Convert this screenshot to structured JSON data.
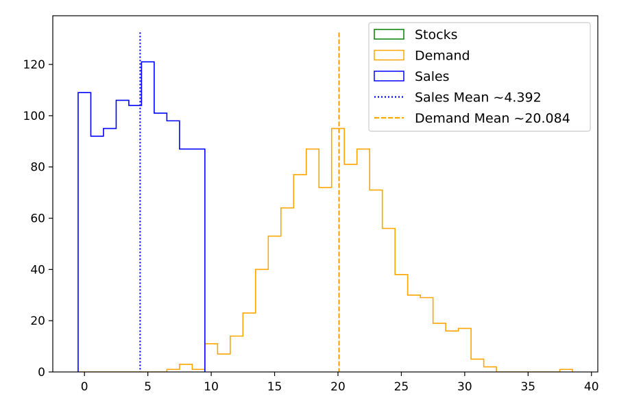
{
  "chart_data": {
    "type": "histogram",
    "title": "",
    "xlabel": "",
    "ylabel": "",
    "xlim": [
      -2.5,
      40.5
    ],
    "ylim": [
      0,
      139
    ],
    "xticks": [
      0,
      5,
      10,
      15,
      20,
      25,
      30,
      35,
      40
    ],
    "yticks": [
      0,
      20,
      40,
      60,
      80,
      100,
      120
    ],
    "grid": false,
    "legend_position": "top-right",
    "series": [
      {
        "name": "Stocks",
        "color": "#008000",
        "style": "step",
        "bin_edges": [],
        "counts": []
      },
      {
        "name": "Demand",
        "color": "#ffa500",
        "style": "step",
        "bin_edges": [
          -0.5,
          0.5,
          1.5,
          2.5,
          3.5,
          4.5,
          5.5,
          6.5,
          7.5,
          8.5,
          9.5,
          10.5,
          11.5,
          12.5,
          13.5,
          14.5,
          15.5,
          16.5,
          17.5,
          18.5,
          19.5,
          20.5,
          21.5,
          22.5,
          23.5,
          24.5,
          25.5,
          26.5,
          27.5,
          28.5,
          29.5,
          30.5,
          31.5,
          32.5,
          33.5,
          34.5,
          35.5,
          36.5,
          37.5,
          38.5
        ],
        "counts": [
          0,
          0,
          0,
          0,
          0,
          0,
          0,
          1,
          3,
          1,
          11,
          7,
          14,
          23,
          40,
          53,
          64,
          77,
          87,
          72,
          95,
          81,
          87,
          71,
          56,
          38,
          30,
          29,
          19,
          16,
          17,
          5,
          2,
          0,
          0,
          0,
          0,
          0,
          1
        ]
      },
      {
        "name": "Sales",
        "color": "#0000ff",
        "style": "step",
        "bin_edges": [
          -0.5,
          0.5,
          1.5,
          2.5,
          3.5,
          4.5,
          5.5,
          6.5,
          7.5,
          8.5,
          9.5
        ],
        "counts": [
          109,
          92,
          95,
          106,
          104,
          121,
          101,
          98,
          87,
          87
        ]
      }
    ],
    "mean_lines": [
      {
        "name": "Sales Mean ~4.392",
        "value": 4.392,
        "color": "#0000ff",
        "linestyle": "dotted"
      },
      {
        "name": "Demand Mean ~20.084",
        "value": 20.084,
        "color": "#ffa500",
        "linestyle": "dashed"
      }
    ]
  }
}
